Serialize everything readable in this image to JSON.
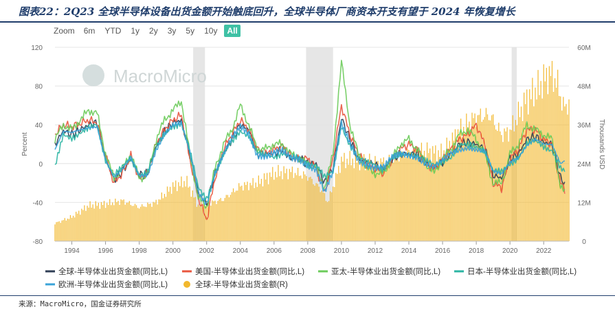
{
  "header": {
    "title": "图表22：2Q23 全球半导体设备出货金额开始触底回升，全球半导体厂商资本开支有望于 2024 年恢复增长"
  },
  "range_selector": {
    "label": "Zoom",
    "buttons": [
      "6m",
      "YTD",
      "1y",
      "2y",
      "3y",
      "5y",
      "10y",
      "All"
    ],
    "active": "All",
    "active_color": "#3fc1a5"
  },
  "watermark": "MacroMicro",
  "footer": {
    "source": "来源：MacroMicro，国金证券研究所"
  },
  "chart_data": {
    "type": "line",
    "x_range": [
      1993.0,
      2023.5
    ],
    "x_ticks": [
      "1994",
      "1996",
      "1998",
      "2000",
      "2002",
      "2004",
      "2006",
      "2008",
      "2010",
      "2012",
      "2014",
      "2016",
      "2018",
      "2020",
      "2022"
    ],
    "y_left": {
      "label": "Percent",
      "range": [
        -80,
        120
      ],
      "ticks": [
        -80,
        -40,
        0,
        40,
        80,
        120
      ]
    },
    "y_right": {
      "label": "Thousands USD",
      "range": [
        0,
        60
      ],
      "ticks": [
        "0",
        "12M",
        "24M",
        "36M",
        "48M",
        "60M"
      ]
    },
    "recession_shading": [
      [
        2001.2,
        2001.9
      ],
      [
        2007.9,
        2009.5
      ],
      [
        2020.1,
        2020.4
      ]
    ],
    "bars": {
      "name": "全球-半导体业出货金额(R)",
      "color": "#f2b82e",
      "x": [
        1993.0,
        1994.0,
        1995.0,
        1996.0,
        1997.0,
        1998.0,
        1999.0,
        2000.0,
        2000.8,
        2001.5,
        2002.0,
        2003.0,
        2004.0,
        2005.0,
        2006.0,
        2007.0,
        2008.0,
        2008.8,
        2009.2,
        2010.0,
        2011.0,
        2012.0,
        2013.0,
        2014.0,
        2015.0,
        2016.0,
        2017.0,
        2018.0,
        2018.8,
        2019.5,
        2020.0,
        2021.0,
        2021.8,
        2022.0,
        2022.4,
        2022.8,
        2023.2,
        2023.5
      ],
      "values": [
        5.5,
        7.5,
        11,
        11.5,
        12.5,
        10.5,
        12,
        17,
        18.5,
        11,
        11.5,
        13,
        17,
        18,
        21,
        21.5,
        20,
        16,
        12,
        25,
        25,
        24,
        25,
        27.5,
        28,
        27,
        34,
        38.5,
        39,
        33,
        34,
        44,
        48,
        50,
        52,
        49,
        41,
        43
      ]
    },
    "series": [
      {
        "name": "全球-半导体业出货金额(同比,L)",
        "color": "#2f3e55",
        "x": [
          1993.0,
          1993.5,
          1994.0,
          1995.0,
          1995.5,
          1996.0,
          1996.5,
          1997.0,
          1997.5,
          1998.0,
          1998.5,
          1999.0,
          1999.5,
          2000.0,
          2000.5,
          2001.0,
          2001.5,
          2002.0,
          2002.5,
          2003.0,
          2003.5,
          2004.0,
          2004.5,
          2005.0,
          2005.5,
          2006.0,
          2006.5,
          2007.0,
          2007.5,
          2008.0,
          2008.5,
          2009.0,
          2009.5,
          2010.0,
          2010.5,
          2011.0,
          2011.5,
          2012.0,
          2012.5,
          2013.0,
          2013.5,
          2014.0,
          2014.5,
          2015.0,
          2015.5,
          2016.0,
          2016.5,
          2017.0,
          2017.5,
          2018.0,
          2018.5,
          2019.0,
          2019.5,
          2020.0,
          2020.5,
          2021.0,
          2021.5,
          2022.0,
          2022.5,
          2023.0,
          2023.3
        ],
        "values": [
          20,
          34,
          30,
          40,
          42,
          5,
          -17,
          -8,
          5,
          -12,
          -10,
          18,
          33,
          42,
          45,
          10,
          -30,
          -42,
          -10,
          10,
          25,
          40,
          35,
          10,
          10,
          10,
          15,
          5,
          5,
          0,
          0,
          -20,
          -5,
          47,
          25,
          5,
          0,
          -2,
          -5,
          5,
          10,
          10,
          10,
          0,
          -5,
          2,
          10,
          20,
          22,
          20,
          15,
          -12,
          -15,
          5,
          10,
          25,
          28,
          22,
          20,
          -15,
          -22
        ]
      },
      {
        "name": "美国-半导体业出货金额(同比,L)",
        "color": "#e8553e",
        "x": [
          1993.0,
          1993.5,
          1994.0,
          1995.0,
          1995.5,
          1996.0,
          1996.5,
          1997.0,
          1997.5,
          1998.0,
          1998.5,
          1999.0,
          1999.5,
          2000.0,
          2000.5,
          2001.0,
          2001.5,
          2002.0,
          2002.5,
          2003.0,
          2003.5,
          2004.0,
          2004.5,
          2005.0,
          2005.5,
          2006.0,
          2006.5,
          2007.0,
          2007.5,
          2008.0,
          2008.5,
          2009.0,
          2009.5,
          2010.0,
          2010.5,
          2011.0,
          2011.5,
          2012.0,
          2012.5,
          2013.0,
          2013.5,
          2014.0,
          2014.5,
          2015.0,
          2015.5,
          2016.0,
          2016.5,
          2017.0,
          2017.5,
          2018.0,
          2018.5,
          2019.0,
          2019.5,
          2020.0,
          2020.5,
          2021.0,
          2021.5,
          2022.0,
          2022.5,
          2023.0,
          2023.3
        ],
        "values": [
          30,
          40,
          38,
          45,
          42,
          8,
          -20,
          -10,
          8,
          -15,
          -10,
          20,
          35,
          45,
          50,
          5,
          -35,
          -58,
          -15,
          15,
          30,
          45,
          35,
          15,
          10,
          15,
          18,
          8,
          5,
          5,
          -5,
          -30,
          5,
          60,
          30,
          10,
          0,
          -5,
          -10,
          5,
          15,
          20,
          15,
          0,
          -5,
          5,
          15,
          25,
          30,
          40,
          20,
          -20,
          -25,
          5,
          15,
          35,
          35,
          25,
          20,
          -20,
          -28
        ]
      },
      {
        "name": "亚太-半导体业出货金额(同比,L)",
        "color": "#6bcb5a",
        "x": [
          1993.0,
          1993.5,
          1994.0,
          1995.0,
          1995.5,
          1996.0,
          1996.5,
          1997.0,
          1997.5,
          1998.0,
          1998.5,
          1999.0,
          1999.5,
          2000.0,
          2000.5,
          2001.0,
          2001.5,
          2002.0,
          2002.5,
          2003.0,
          2003.5,
          2004.0,
          2004.5,
          2005.0,
          2005.5,
          2006.0,
          2006.5,
          2007.0,
          2007.5,
          2008.0,
          2008.5,
          2009.0,
          2009.5,
          2010.0,
          2010.5,
          2011.0,
          2011.5,
          2012.0,
          2012.5,
          2013.0,
          2013.5,
          2014.0,
          2014.5,
          2015.0,
          2015.5,
          2016.0,
          2016.5,
          2017.0,
          2017.5,
          2018.0,
          2018.5,
          2019.0,
          2019.5,
          2020.0,
          2020.5,
          2021.0,
          2021.5,
          2022.0,
          2022.5,
          2023.0,
          2023.3
        ],
        "values": [
          25,
          40,
          35,
          55,
          52,
          10,
          -15,
          -5,
          10,
          -15,
          -12,
          25,
          45,
          55,
          65,
          10,
          -35,
          -45,
          -5,
          20,
          35,
          60,
          40,
          15,
          15,
          20,
          20,
          10,
          5,
          0,
          -5,
          -25,
          10,
          105,
          40,
          10,
          -5,
          -10,
          -10,
          5,
          20,
          25,
          15,
          0,
          -10,
          5,
          15,
          30,
          35,
          25,
          10,
          -20,
          -20,
          10,
          20,
          40,
          35,
          30,
          25,
          -25,
          -30
        ]
      },
      {
        "name": "日本-半导体业出货金额(同比,L)",
        "color": "#2bb5a3",
        "x": [
          1993.0,
          1993.5,
          1994.0,
          1995.0,
          1995.5,
          1996.0,
          1996.5,
          1997.0,
          1997.5,
          1998.0,
          1998.5,
          1999.0,
          1999.5,
          2000.0,
          2000.5,
          2001.0,
          2001.5,
          2002.0,
          2002.5,
          2003.0,
          2003.5,
          2004.0,
          2004.5,
          2005.0,
          2005.5,
          2006.0,
          2006.5,
          2007.0,
          2007.5,
          2008.0,
          2008.5,
          2009.0,
          2009.5,
          2010.0,
          2010.5,
          2011.0,
          2011.5,
          2012.0,
          2012.5,
          2013.0,
          2013.5,
          2014.0,
          2014.5,
          2015.0,
          2015.5,
          2016.0,
          2016.5,
          2017.0,
          2017.5,
          2018.0,
          2018.5,
          2019.0,
          2019.5,
          2020.0,
          2020.5,
          2021.0,
          2021.5,
          2022.0,
          2022.5,
          2023.0,
          2023.3
        ],
        "values": [
          -5,
          30,
          28,
          35,
          40,
          5,
          -12,
          -5,
          5,
          -10,
          -8,
          15,
          30,
          40,
          42,
          12,
          -25,
          -35,
          -10,
          8,
          22,
          35,
          30,
          10,
          8,
          8,
          12,
          5,
          5,
          0,
          0,
          -15,
          -10,
          40,
          20,
          5,
          0,
          0,
          -5,
          5,
          8,
          10,
          10,
          2,
          -3,
          3,
          8,
          18,
          18,
          18,
          15,
          -8,
          -10,
          0,
          8,
          20,
          22,
          18,
          15,
          -5,
          -10
        ]
      },
      {
        "name": "欧洲-半导体业出货金额(同比,L)",
        "color": "#3aa3d8",
        "x": [
          1993.0,
          1993.5,
          1994.0,
          1995.0,
          1995.5,
          1996.0,
          1996.5,
          1997.0,
          1997.5,
          1998.0,
          1998.5,
          1999.0,
          1999.5,
          2000.0,
          2000.5,
          2001.0,
          2001.5,
          2002.0,
          2002.5,
          2003.0,
          2003.5,
          2004.0,
          2004.5,
          2005.0,
          2005.5,
          2006.0,
          2006.5,
          2007.0,
          2007.5,
          2008.0,
          2008.5,
          2009.0,
          2009.5,
          2010.0,
          2010.5,
          2011.0,
          2011.5,
          2012.0,
          2012.5,
          2013.0,
          2013.5,
          2014.0,
          2014.5,
          2015.0,
          2015.5,
          2016.0,
          2016.5,
          2017.0,
          2017.5,
          2018.0,
          2018.5,
          2019.0,
          2019.5,
          2020.0,
          2020.5,
          2021.0,
          2021.5,
          2022.0,
          2022.5,
          2023.0,
          2023.3
        ],
        "values": [
          15,
          32,
          30,
          38,
          40,
          5,
          -15,
          -8,
          5,
          -12,
          -10,
          15,
          30,
          38,
          40,
          12,
          -28,
          -40,
          -10,
          8,
          25,
          38,
          32,
          10,
          8,
          10,
          12,
          5,
          5,
          0,
          -5,
          -30,
          -10,
          40,
          22,
          5,
          0,
          -5,
          -5,
          5,
          10,
          10,
          8,
          0,
          -5,
          2,
          10,
          15,
          18,
          15,
          12,
          -10,
          -12,
          2,
          8,
          20,
          25,
          18,
          18,
          0,
          5
        ]
      }
    ]
  }
}
